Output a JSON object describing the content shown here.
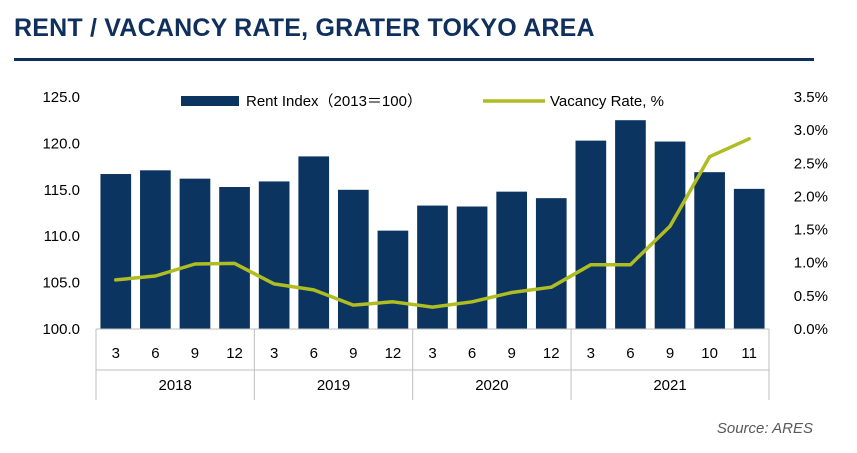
{
  "title": "RENT / VACANCY RATE, GRATER TOKYO AREA",
  "source": "Source: ARES",
  "chart_data": {
    "type": "bar",
    "categories": [
      "3",
      "6",
      "9",
      "12",
      "3",
      "6",
      "9",
      "12",
      "3",
      "6",
      "9",
      "12",
      "3",
      "6",
      "9",
      "10",
      "11"
    ],
    "groups": [
      {
        "label": "2018",
        "count": 4
      },
      {
        "label": "2019",
        "count": 4
      },
      {
        "label": "2020",
        "count": 4
      },
      {
        "label": "2021",
        "count": 5
      }
    ],
    "series": [
      {
        "name": "Rent Index（2013＝100）",
        "type": "bar",
        "axis": "left",
        "color": "#0c3461",
        "values": [
          116.7,
          117.1,
          116.2,
          115.3,
          115.9,
          118.6,
          115.0,
          110.6,
          113.3,
          113.2,
          114.8,
          114.1,
          120.3,
          122.5,
          120.2,
          116.9,
          115.1
        ]
      },
      {
        "name": "Vacancy Rate, %",
        "type": "line",
        "axis": "right",
        "color": "#afbd22",
        "values": [
          0.74,
          0.8,
          0.98,
          0.99,
          0.68,
          0.59,
          0.36,
          0.41,
          0.33,
          0.41,
          0.55,
          0.63,
          0.97,
          0.97,
          1.55,
          2.6,
          2.87
        ]
      }
    ],
    "y_left": {
      "min": 100,
      "max": 125,
      "ticks": [
        "100.0",
        "105.0",
        "110.0",
        "115.0",
        "120.0",
        "125.0"
      ]
    },
    "y_right": {
      "min": 0,
      "max": 3.5,
      "ticks": [
        "0.0%",
        "0.5%",
        "1.0%",
        "1.5%",
        "2.0%",
        "2.5%",
        "3.0%",
        "3.5%"
      ]
    },
    "legend_position": "top",
    "grid": false
  }
}
